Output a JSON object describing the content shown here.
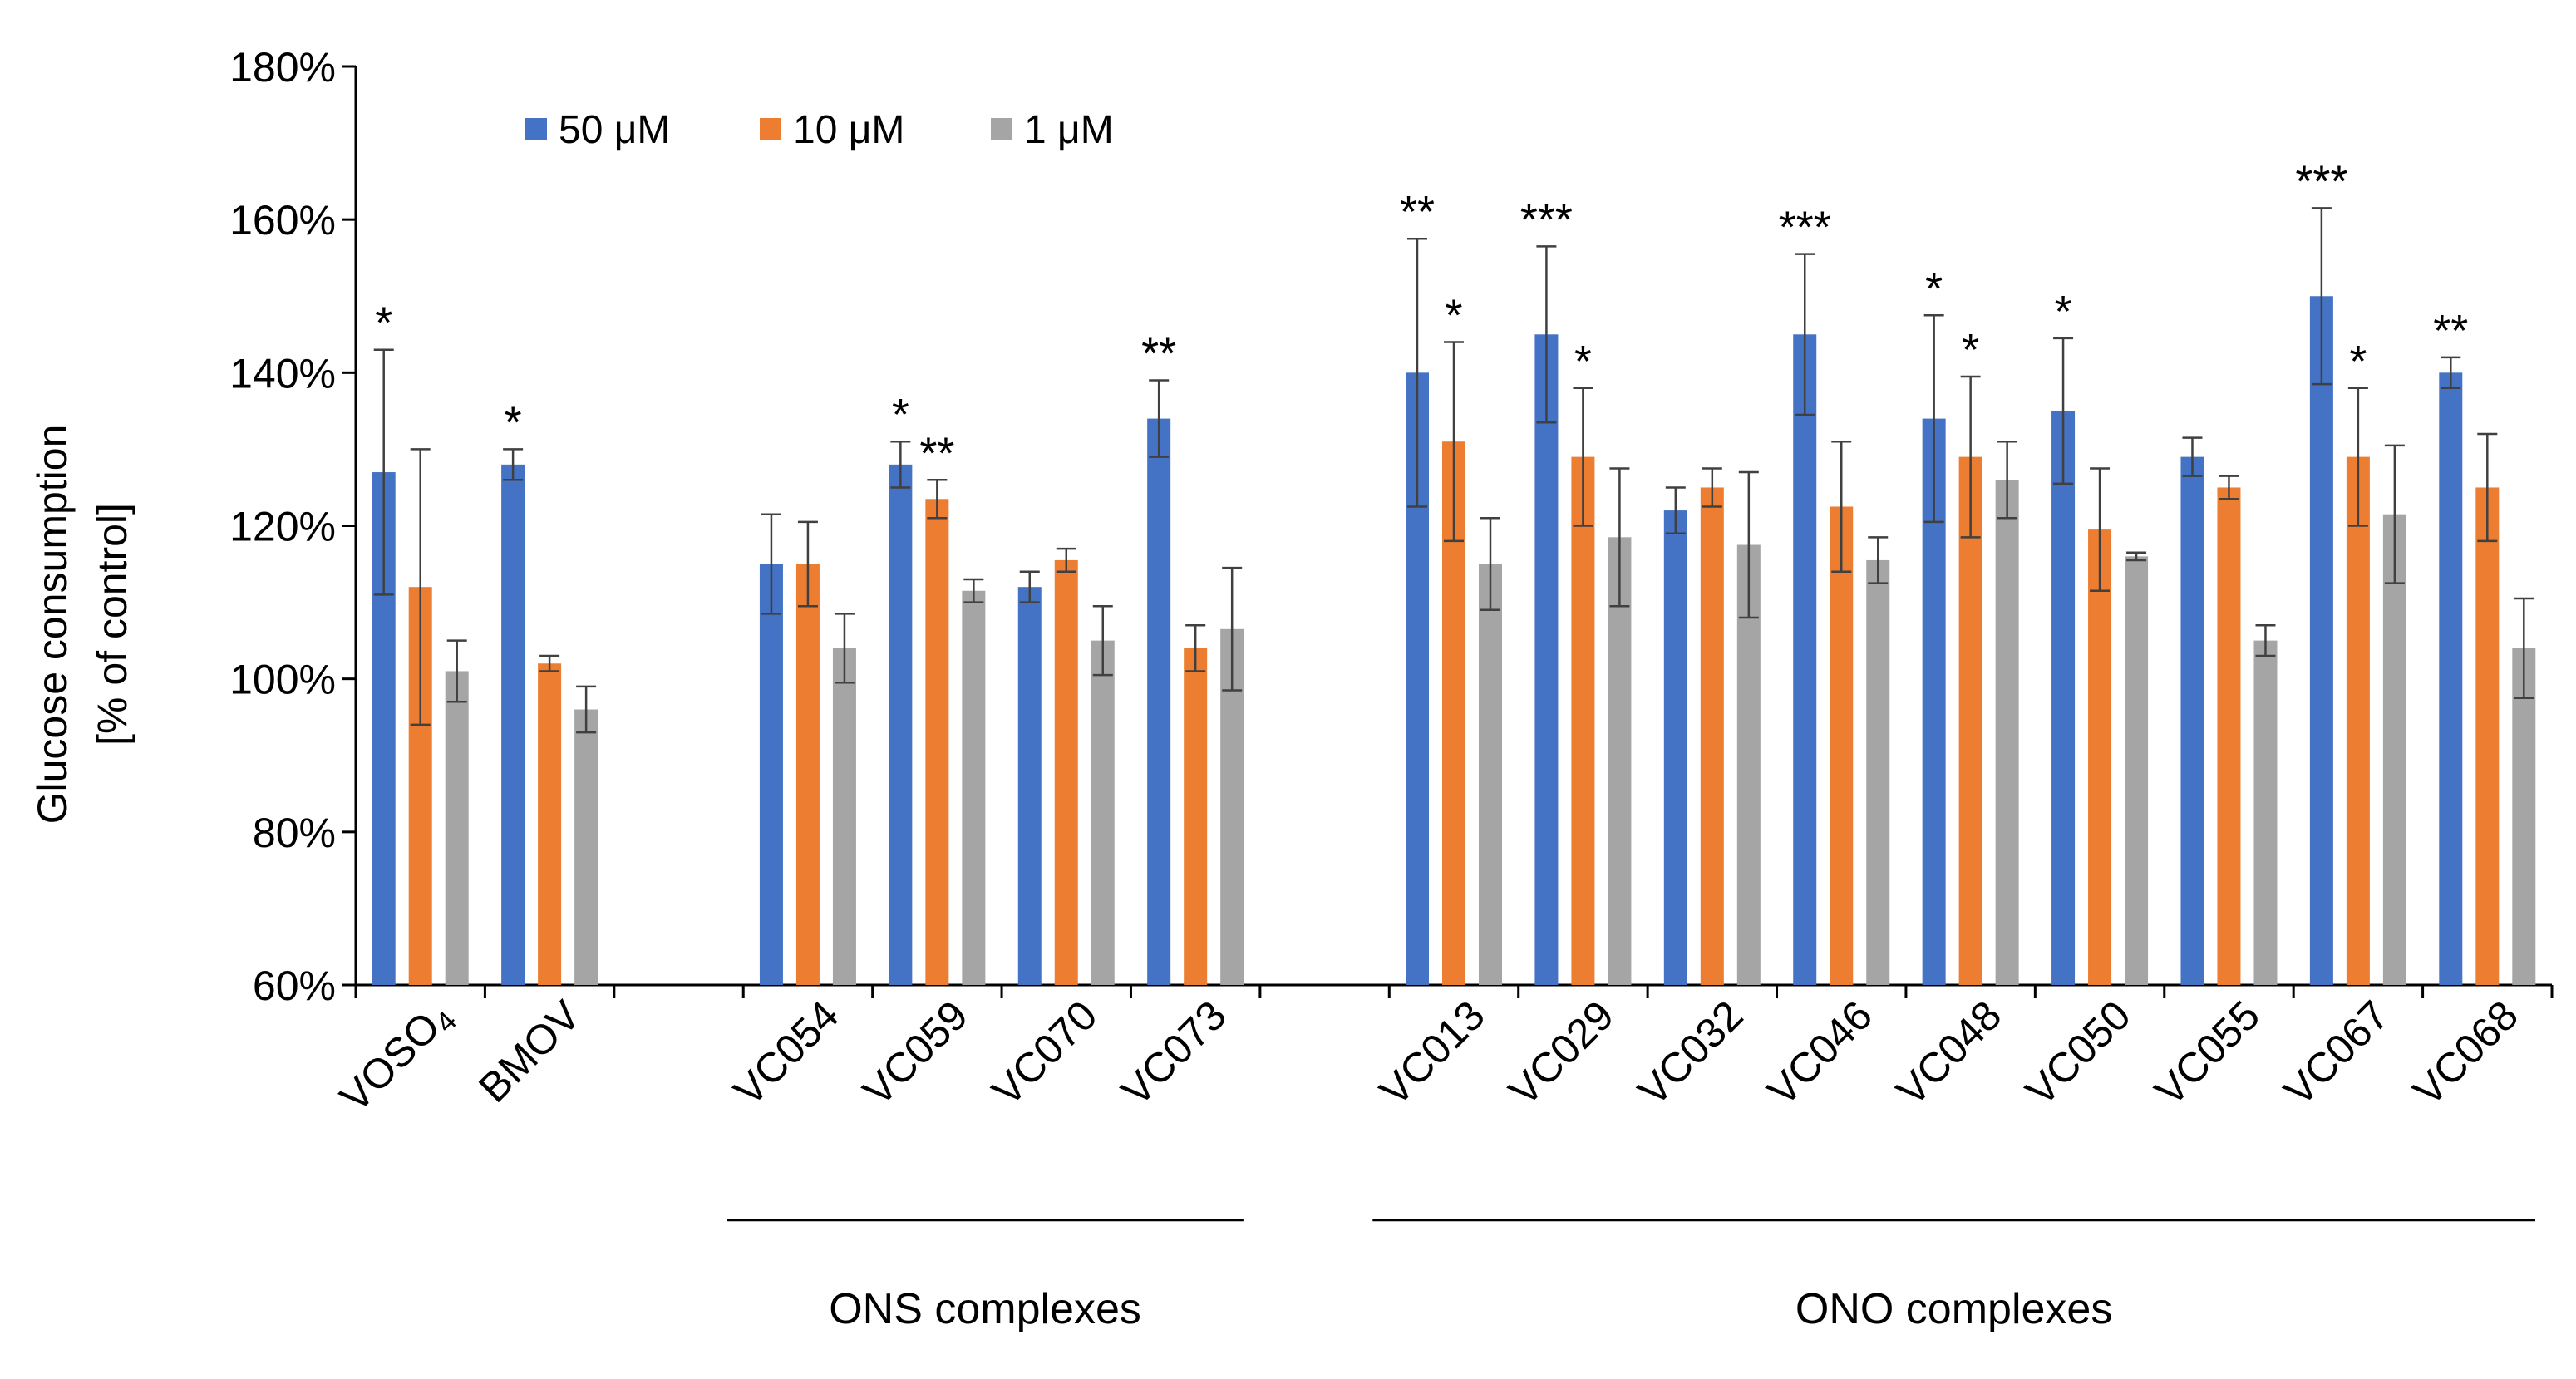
{
  "chart_data": {
    "type": "bar",
    "ylabel_lines": [
      "Glucose consumption",
      "[% of control]"
    ],
    "ylim": [
      60,
      180
    ],
    "yticks": [
      60,
      80,
      100,
      120,
      140,
      160,
      180
    ],
    "ytick_labels": [
      "60%",
      "80%",
      "100%",
      "120%",
      "140%",
      "160%",
      "180%"
    ],
    "legend_position": "top-left",
    "grid": false,
    "categories": [
      "VOSO4",
      "BMOV",
      "",
      "VC054",
      "VC059",
      "VC070",
      "VC073",
      "",
      "VC013",
      "VC029",
      "VC032",
      "VC046",
      "VC048",
      "VC050",
      "VC055",
      "VC067",
      "VC068"
    ],
    "category_labels": [
      {
        "main": "VOSO",
        "sub": "4"
      },
      {
        "main": "BMOV",
        "sub": ""
      },
      {
        "main": "",
        "sub": ""
      },
      {
        "main": "VC054",
        "sub": ""
      },
      {
        "main": "VC059",
        "sub": ""
      },
      {
        "main": "VC070",
        "sub": ""
      },
      {
        "main": "VC073",
        "sub": ""
      },
      {
        "main": "",
        "sub": ""
      },
      {
        "main": "VC013",
        "sub": ""
      },
      {
        "main": "VC029",
        "sub": ""
      },
      {
        "main": "VC032",
        "sub": ""
      },
      {
        "main": "VC046",
        "sub": ""
      },
      {
        "main": "VC048",
        "sub": ""
      },
      {
        "main": "VC050",
        "sub": ""
      },
      {
        "main": "VC055",
        "sub": ""
      },
      {
        "main": "VC067",
        "sub": ""
      },
      {
        "main": "VC068",
        "sub": ""
      }
    ],
    "series": [
      {
        "name": "50 μM",
        "color": "#4472C4",
        "values": [
          127,
          128,
          null,
          115,
          128,
          112,
          134,
          null,
          140,
          145,
          122,
          145,
          134,
          135,
          129,
          150,
          140
        ],
        "errors": [
          16,
          2,
          null,
          6.5,
          3,
          2,
          5,
          null,
          17.5,
          11.5,
          3,
          10.5,
          13.5,
          9.5,
          2.5,
          11.5,
          2
        ],
        "significance": [
          "*",
          "*",
          "",
          "",
          "*",
          "",
          "**",
          "",
          "**",
          "***",
          "",
          "***",
          "*",
          "*",
          "",
          "***",
          "**"
        ]
      },
      {
        "name": "10 μM",
        "color": "#ED7D31",
        "values": [
          112,
          102,
          null,
          115,
          123.5,
          115.5,
          104,
          null,
          131,
          129,
          125,
          122.5,
          129,
          119.5,
          125,
          129,
          125
        ],
        "errors": [
          18,
          1,
          null,
          5.5,
          2.5,
          1.5,
          3,
          null,
          13,
          9,
          2.5,
          8.5,
          10.5,
          8,
          1.5,
          9,
          7
        ],
        "significance": [
          "",
          "",
          "",
          "",
          "**",
          "",
          "",
          "",
          "*",
          "*",
          "",
          "",
          "*",
          "",
          "",
          "*",
          ""
        ]
      },
      {
        "name": "1 μM",
        "color": "#A5A5A5",
        "values": [
          101,
          96,
          null,
          104,
          111.5,
          105,
          106.5,
          null,
          115,
          118.5,
          117.5,
          115.5,
          126,
          116,
          105,
          121.5,
          104
        ],
        "errors": [
          4,
          3,
          null,
          4.5,
          1.5,
          4.5,
          8,
          null,
          6,
          9,
          9.5,
          3,
          5,
          0.5,
          2,
          9,
          6.5
        ],
        "significance": [
          "",
          "",
          "",
          "",
          "",
          "",
          "",
          "",
          "",
          "",
          "",
          "",
          "",
          "",
          "",
          "",
          ""
        ]
      }
    ],
    "group_labels": [
      {
        "text": "ONS complexes",
        "from_index": 3,
        "to_index": 6
      },
      {
        "text": "ONO complexes",
        "from_index": 8,
        "to_index": 16
      }
    ]
  }
}
